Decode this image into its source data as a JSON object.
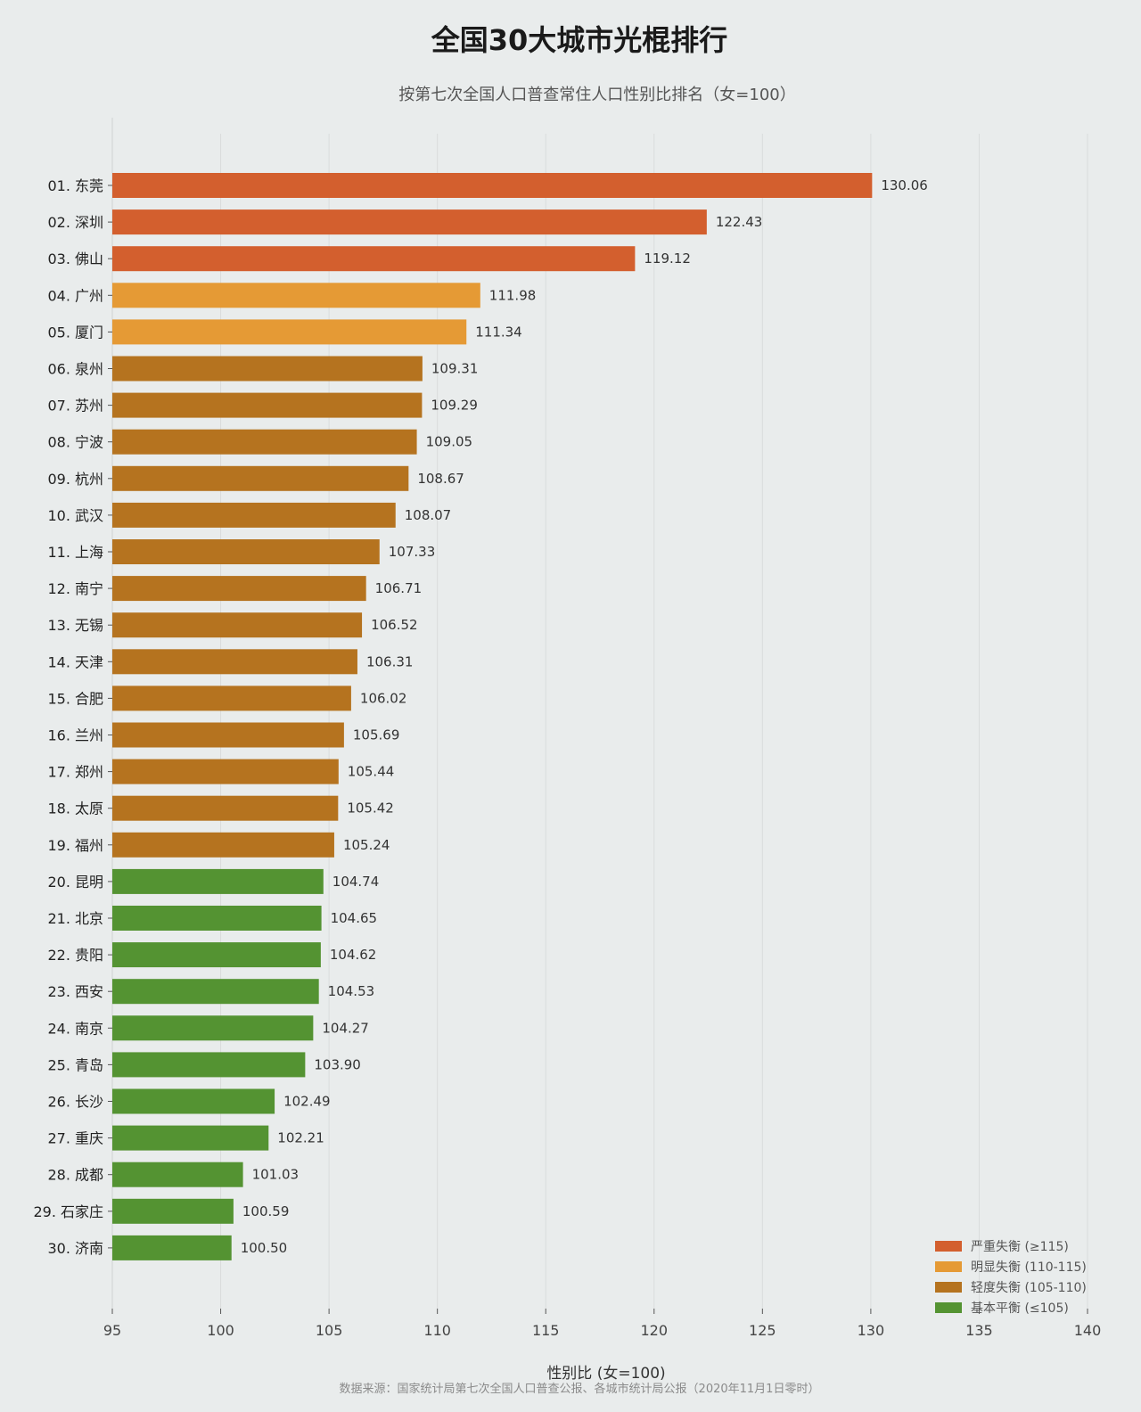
{
  "title": "全国30大城市光棍排行",
  "subtitle": "按第七次全国人口普查常住人口性别比排名（女=100）",
  "source": "数据来源：国家统计局第七次全国人口普查公报、各城市统计局公报（2020年11月1日零时）",
  "chart_data": {
    "type": "bar",
    "orientation": "horizontal",
    "title": "全国30大城市光棍排行",
    "subtitle": "按第七次全国人口普查常住人口性别比排名（女=100）",
    "xlabel": "性别比 (女=100)",
    "ylabel": "",
    "xlim": [
      95,
      140
    ],
    "xticks": [
      95,
      100,
      105,
      110,
      115,
      120,
      125,
      130,
      135,
      140
    ],
    "grid": "vertical",
    "legend_position": "bottom-right",
    "legend": [
      {
        "label": "严重失衡 (≥115)",
        "color": "#d35f2e"
      },
      {
        "label": "明显失衡 (110-115)",
        "color": "#e59a35"
      },
      {
        "label": "轻度失衡 (105-110)",
        "color": "#b5731f"
      },
      {
        "label": "基本平衡 (≤105)",
        "color": "#549332"
      }
    ],
    "categories": [
      "01. 东莞",
      "02. 深圳",
      "03. 佛山",
      "04. 广州",
      "05. 厦门",
      "06. 泉州",
      "07. 苏州",
      "08. 宁波",
      "09. 杭州",
      "10. 武汉",
      "11. 上海",
      "12. 南宁",
      "13. 无锡",
      "14. 天津",
      "15. 合肥",
      "16. 兰州",
      "17. 郑州",
      "18. 太原",
      "19. 福州",
      "20. 昆明",
      "21. 北京",
      "22. 贵阳",
      "23. 西安",
      "24. 南京",
      "25. 青岛",
      "26. 长沙",
      "27. 重庆",
      "28. 成都",
      "29. 石家庄",
      "30. 济南"
    ],
    "values": [
      130.06,
      122.43,
      119.12,
      111.98,
      111.34,
      109.31,
      109.29,
      109.05,
      108.67,
      108.07,
      107.33,
      106.71,
      106.52,
      106.31,
      106.02,
      105.69,
      105.44,
      105.42,
      105.24,
      104.74,
      104.65,
      104.62,
      104.53,
      104.27,
      103.9,
      102.49,
      102.21,
      101.03,
      100.59,
      100.5
    ],
    "value_labels": [
      "130.06",
      "122.43",
      "119.12",
      "111.98",
      "111.34",
      "109.31",
      "109.29",
      "109.05",
      "108.67",
      "108.07",
      "107.33",
      "106.71",
      "106.52",
      "106.31",
      "106.02",
      "105.69",
      "105.44",
      "105.42",
      "105.24",
      "104.74",
      "104.65",
      "104.62",
      "104.53",
      "104.27",
      "103.90",
      "102.49",
      "102.21",
      "101.03",
      "100.59",
      "100.50"
    ],
    "colors": {
      "severe": "#d35f2e",
      "obvious": "#e59a35",
      "mild": "#b5731f",
      "balanced": "#549332"
    }
  }
}
